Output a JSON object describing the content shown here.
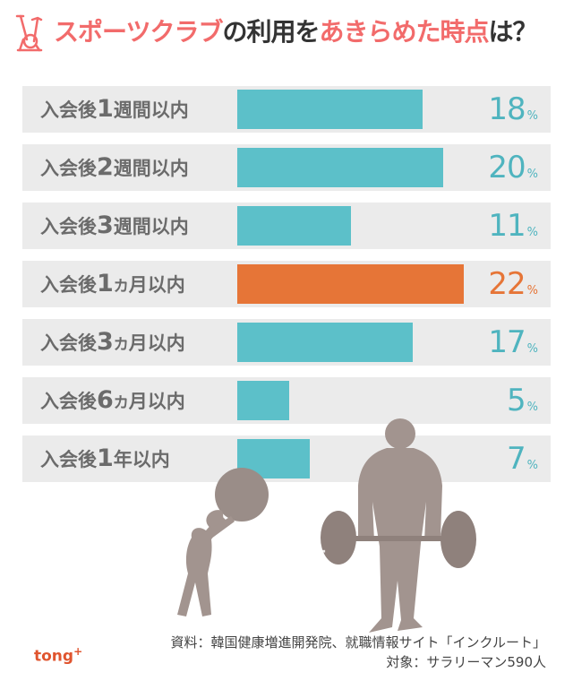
{
  "title": {
    "part1": "スポーツクラブ",
    "part2": "の利用を",
    "part3": "あきらめた時点",
    "part4": "は？"
  },
  "chart_data": {
    "type": "bar",
    "orientation": "horizontal",
    "title": "スポーツクラブの利用をあきらめた時点は？",
    "categories": [
      "入会後1週間以内",
      "入会後2週間以内",
      "入会後3週間以内",
      "入会後1カ月以内",
      "入会後3カ月以内",
      "入会後6カ月以内",
      "入会後1年以内"
    ],
    "values": [
      18,
      20,
      11,
      22,
      17,
      5,
      7
    ],
    "unit": "%",
    "highlight_index": 3,
    "colors": {
      "bar": "#5cc0c9",
      "highlight": "#e67537",
      "row_background": "#ebebeb"
    },
    "grid": false
  },
  "rows": [
    {
      "prefix": "入会後",
      "num": "1",
      "suffix": "週間以内",
      "value": "18",
      "unit": "%",
      "highlight": false
    },
    {
      "prefix": "入会後",
      "num": "2",
      "suffix": "週間以内",
      "value": "20",
      "unit": "%",
      "highlight": false
    },
    {
      "prefix": "入会後",
      "num": "3",
      "suffix": "週間以内",
      "value": "11",
      "unit": "%",
      "highlight": false
    },
    {
      "prefix": "入会後",
      "num": "1",
      "ka": "カ",
      "suffix": "月以内",
      "value": "22",
      "unit": "%",
      "highlight": true
    },
    {
      "prefix": "入会後",
      "num": "3",
      "ka": "カ",
      "suffix": "月以内",
      "value": "17",
      "unit": "%",
      "highlight": false
    },
    {
      "prefix": "入会後",
      "num": "6",
      "ka": "カ",
      "suffix": "月以内",
      "value": "5",
      "unit": "%",
      "highlight": false
    },
    {
      "prefix": "入会後",
      "num": "1",
      "suffix": "年以内",
      "value": "7",
      "unit": "%",
      "highlight": false
    }
  ],
  "source": {
    "line1": "資料：韓国健康増進開発院、就職情報サイト「インクルート」",
    "line2": "対象：サラリーマン590人"
  },
  "logo": {
    "text": "tong",
    "mark": "+"
  },
  "watermark": "tong+",
  "icons": [
    "exercise-bike-icon",
    "woman-stretching-with-ball-figure",
    "weightlifter-figure"
  ],
  "colors": {
    "accent_title": "#f26b6b",
    "teal": "#5cc0c9",
    "orange": "#e67537",
    "figure": "#a2948f"
  }
}
